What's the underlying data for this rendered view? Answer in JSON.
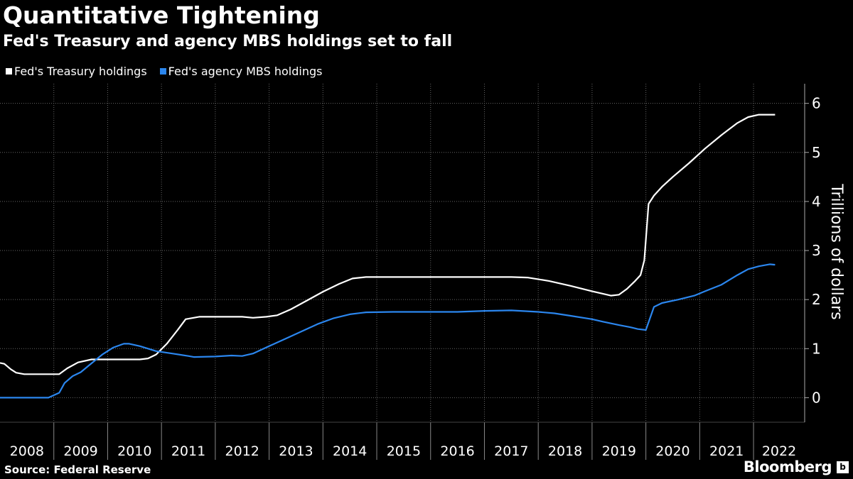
{
  "header": {
    "title": "Quantitative Tightening",
    "subtitle": "Fed's Treasury and agency MBS holdings set to fall"
  },
  "legend": [
    {
      "label": "Fed's Treasury holdings",
      "color": "#ffffff"
    },
    {
      "label": "Fed's agency MBS holdings",
      "color": "#2b86ee"
    }
  ],
  "footer": {
    "source": "Source: Federal Reserve",
    "brand": "Bloomberg",
    "brand_badge": "b"
  },
  "chart_data": {
    "type": "line",
    "title": "Quantitative Tightening",
    "subtitle": "Fed's Treasury and agency MBS holdings set to fall",
    "xlabel": "",
    "ylabel": "Trillions of dollars",
    "ylim": [
      -0.5,
      6.4
    ],
    "xlim": [
      2008.0,
      2022.95
    ],
    "yticks": [
      0,
      1,
      2,
      3,
      4,
      5,
      6
    ],
    "ytick_labels": [
      "0",
      "1",
      "2",
      "3",
      "4",
      "5",
      "6"
    ],
    "xtick_labels": [
      "2008",
      "2009",
      "2010",
      "2011",
      "2012",
      "2013",
      "2014",
      "2015",
      "2016",
      "2017",
      "2018",
      "2019",
      "2020",
      "2021",
      "2022"
    ],
    "grid": true,
    "series": [
      {
        "name": "Fed's Treasury holdings",
        "color": "#ffffff",
        "x": [
          2008.0,
          2008.08,
          2008.2,
          2008.3,
          2008.45,
          2008.7,
          2008.9,
          2009.1,
          2009.25,
          2009.45,
          2009.7,
          2010.0,
          2010.3,
          2010.6,
          2010.75,
          2010.9,
          2011.1,
          2011.3,
          2011.45,
          2011.7,
          2011.9,
          2012.2,
          2012.5,
          2012.7,
          2012.95,
          2013.15,
          2013.4,
          2013.7,
          2014.0,
          2014.3,
          2014.55,
          2014.8,
          2015.0,
          2016.0,
          2017.0,
          2017.5,
          2017.8,
          2018.2,
          2018.6,
          2019.0,
          2019.2,
          2019.35,
          2019.5,
          2019.65,
          2019.8,
          2019.9,
          2019.97,
          2020.05,
          2020.15,
          2020.3,
          2020.5,
          2020.8,
          2021.1,
          2021.4,
          2021.7,
          2021.9,
          2022.1,
          2022.2,
          2022.4
        ],
        "y": [
          0.71,
          0.69,
          0.58,
          0.51,
          0.48,
          0.48,
          0.48,
          0.48,
          0.6,
          0.72,
          0.78,
          0.78,
          0.78,
          0.78,
          0.8,
          0.88,
          1.1,
          1.38,
          1.6,
          1.65,
          1.65,
          1.65,
          1.65,
          1.63,
          1.65,
          1.68,
          1.8,
          1.98,
          2.16,
          2.32,
          2.43,
          2.46,
          2.46,
          2.46,
          2.46,
          2.46,
          2.45,
          2.38,
          2.28,
          2.17,
          2.12,
          2.08,
          2.1,
          2.22,
          2.38,
          2.5,
          2.8,
          3.95,
          4.12,
          4.3,
          4.5,
          4.78,
          5.08,
          5.35,
          5.6,
          5.72,
          5.77,
          5.77,
          5.77
        ]
      },
      {
        "name": "Fed's agency MBS holdings",
        "color": "#2b86ee",
        "x": [
          2008.0,
          2008.9,
          2009.1,
          2009.2,
          2009.35,
          2009.5,
          2009.7,
          2009.9,
          2010.1,
          2010.3,
          2010.4,
          2010.6,
          2010.9,
          2011.2,
          2011.5,
          2011.6,
          2012.0,
          2012.3,
          2012.5,
          2012.7,
          2013.0,
          2013.3,
          2013.6,
          2013.9,
          2014.2,
          2014.5,
          2014.8,
          2015.3,
          2016.0,
          2016.5,
          2017.0,
          2017.5,
          2018.0,
          2018.3,
          2018.6,
          2019.0,
          2019.2,
          2019.5,
          2019.7,
          2019.85,
          2020.0,
          2020.15,
          2020.3,
          2020.6,
          2020.9,
          2021.1,
          2021.4,
          2021.7,
          2021.9,
          2022.1,
          2022.3,
          2022.4
        ],
        "y": [
          0.0,
          0.0,
          0.1,
          0.3,
          0.44,
          0.52,
          0.7,
          0.88,
          1.02,
          1.1,
          1.1,
          1.05,
          0.95,
          0.9,
          0.85,
          0.83,
          0.84,
          0.86,
          0.85,
          0.9,
          1.05,
          1.2,
          1.35,
          1.5,
          1.62,
          1.7,
          1.74,
          1.75,
          1.75,
          1.75,
          1.77,
          1.78,
          1.75,
          1.72,
          1.67,
          1.6,
          1.55,
          1.48,
          1.44,
          1.4,
          1.38,
          1.85,
          1.93,
          2.0,
          2.08,
          2.17,
          2.3,
          2.5,
          2.62,
          2.68,
          2.72,
          2.71
        ]
      }
    ]
  }
}
